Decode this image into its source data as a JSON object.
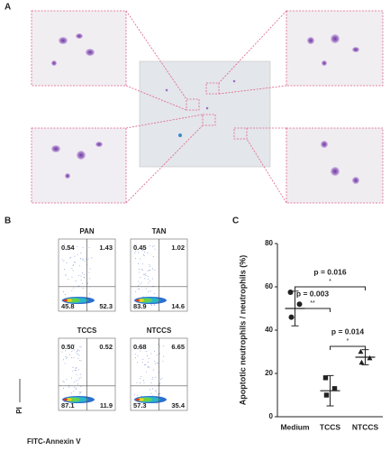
{
  "panel_a": {
    "label": "A"
  },
  "panel_b": {
    "label": "B",
    "x_label": "FITC-Annexin V",
    "y_label": "PI",
    "plots": [
      {
        "title": "PAN",
        "quadrants": [
          "0.54",
          "1.43",
          "45.8",
          "52.3"
        ]
      },
      {
        "title": "TAN",
        "quadrants": [
          "0.45",
          "1.02",
          "83.9",
          "14.6"
        ]
      },
      {
        "title": "TCCS",
        "quadrants": [
          "0.50",
          "0.52",
          "87.1",
          "11.9"
        ]
      },
      {
        "title": "NTCCS",
        "quadrants": [
          "0.68",
          "6.65",
          "57.3",
          "35.4"
        ]
      }
    ]
  },
  "chart_data": {
    "type": "dot",
    "label": "C",
    "y_label": "Apoptotic neutrophils / neutrophils (%)",
    "categories": [
      "Medium",
      "TCCS",
      "NTCCS"
    ],
    "points": [
      [
        57.5,
        52,
        46
      ],
      [
        18,
        13,
        10
      ],
      [
        30,
        27,
        25
      ]
    ],
    "mean": [
      50,
      12,
      27.5
    ],
    "sd": [
      8,
      7,
      3.5
    ],
    "ylim": [
      0,
      80
    ],
    "yticks": [
      0,
      20,
      40,
      60,
      80
    ],
    "comparisons": [
      {
        "label": "p = 0.003",
        "stars": "**"
      },
      {
        "label": "p = 0.016",
        "stars": "*"
      },
      {
        "label": "p = 0.014",
        "stars": "*"
      }
    ]
  }
}
